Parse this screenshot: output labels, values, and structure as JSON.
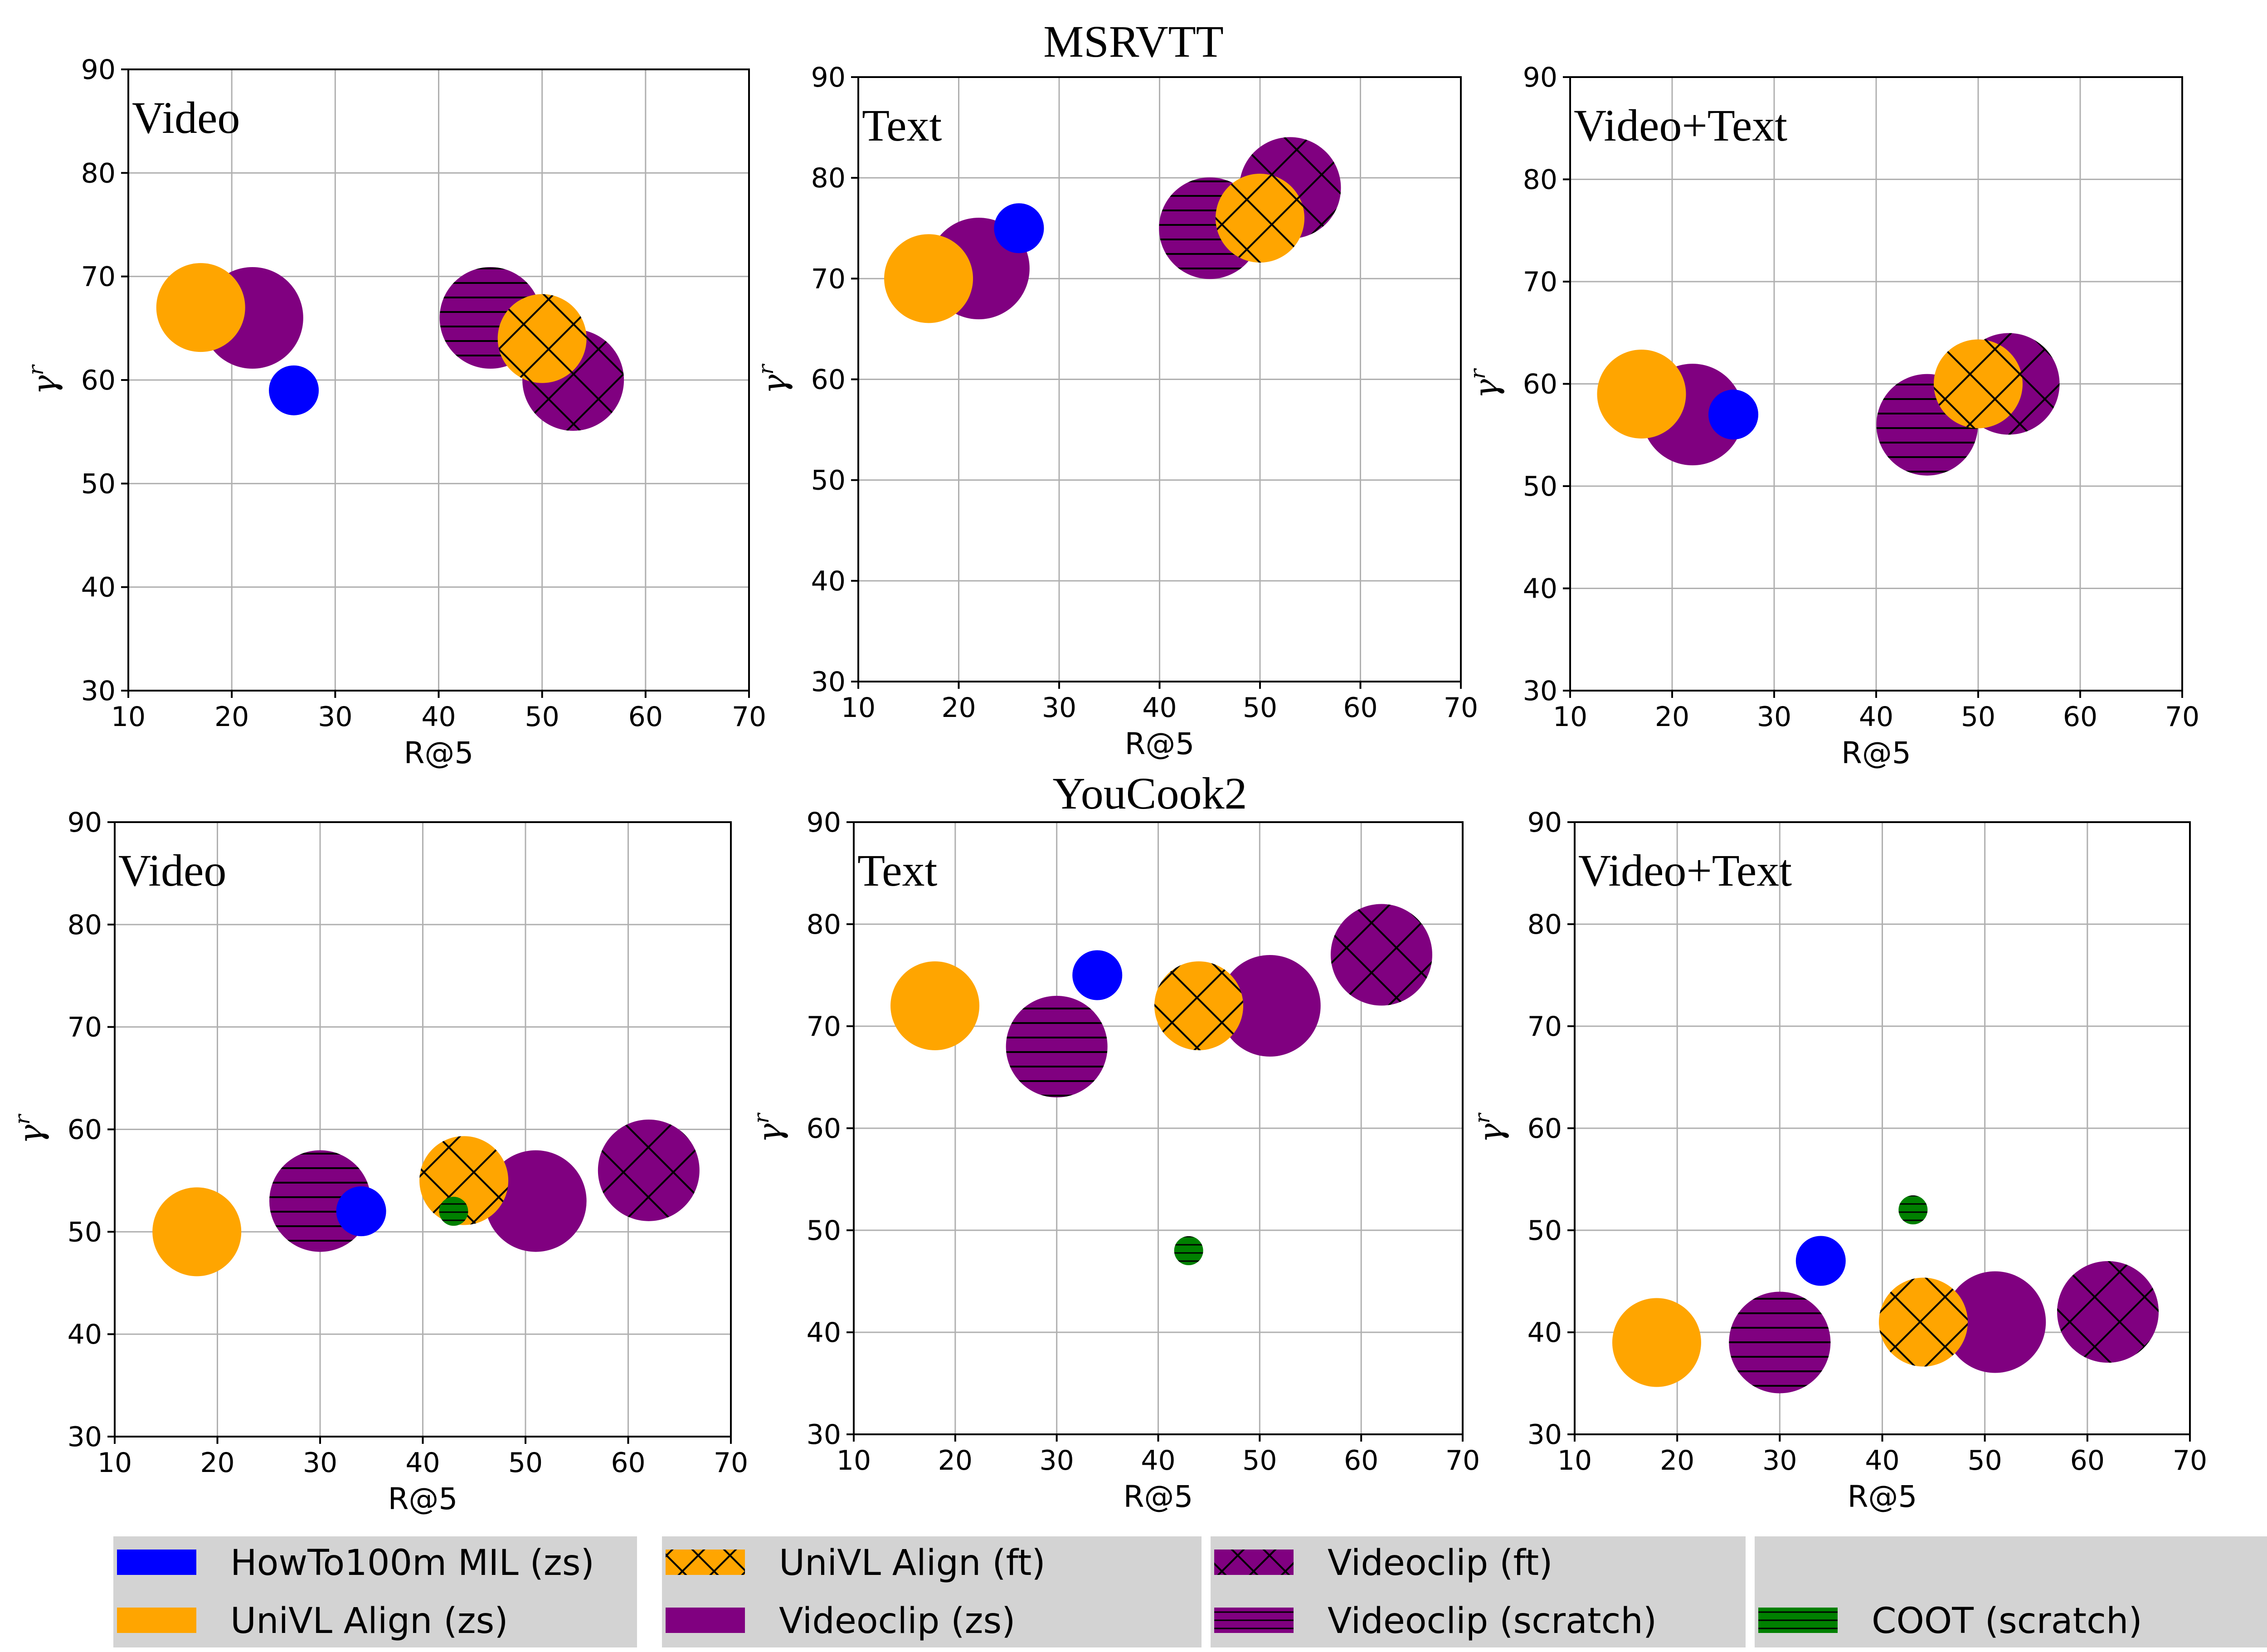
{
  "chart_data": [
    {
      "type": "scatter",
      "group_title": "MSRVTT",
      "panel_title": "Video",
      "xlabel": "R@5",
      "ylabel": "γ^r",
      "xlim": [
        10,
        70
      ],
      "ylim": [
        30,
        90
      ],
      "xticks": [
        10,
        20,
        30,
        40,
        50,
        60,
        70
      ],
      "yticks": [
        30,
        40,
        50,
        60,
        70,
        80,
        90
      ],
      "grid": true,
      "points": [
        {
          "series": "HowTo100m MIL (zs)",
          "x": 26,
          "y": 59
        },
        {
          "series": "UniVL Align (zs)",
          "x": 17,
          "y": 67
        },
        {
          "series": "Videoclip (zs)",
          "x": 22,
          "y": 66
        },
        {
          "series": "Videoclip (scratch)",
          "x": 45,
          "y": 66
        },
        {
          "series": "Videoclip (ft)",
          "x": 53,
          "y": 60
        },
        {
          "series": "UniVL Align (ft)",
          "x": 50,
          "y": 64
        }
      ]
    },
    {
      "type": "scatter",
      "group_title": "MSRVTT",
      "panel_title": "Text",
      "xlabel": "R@5",
      "ylabel": "γ^r",
      "xlim": [
        10,
        70
      ],
      "ylim": [
        30,
        90
      ],
      "xticks": [
        10,
        20,
        30,
        40,
        50,
        60,
        70
      ],
      "yticks": [
        30,
        40,
        50,
        60,
        70,
        80,
        90
      ],
      "grid": true,
      "points": [
        {
          "series": "Videoclip (zs)",
          "x": 22,
          "y": 71
        },
        {
          "series": "UniVL Align (zs)",
          "x": 17,
          "y": 70
        },
        {
          "series": "HowTo100m MIL (zs)",
          "x": 26,
          "y": 75
        },
        {
          "series": "Videoclip (scratch)",
          "x": 45,
          "y": 75
        },
        {
          "series": "Videoclip (ft)",
          "x": 53,
          "y": 79
        },
        {
          "series": "UniVL Align (ft)",
          "x": 50,
          "y": 76
        }
      ]
    },
    {
      "type": "scatter",
      "group_title": "MSRVTT",
      "panel_title": "Video+Text",
      "xlabel": "R@5",
      "ylabel": "γ^r",
      "xlim": [
        10,
        70
      ],
      "ylim": [
        30,
        90
      ],
      "xticks": [
        10,
        20,
        30,
        40,
        50,
        60,
        70
      ],
      "yticks": [
        30,
        40,
        50,
        60,
        70,
        80,
        90
      ],
      "grid": true,
      "points": [
        {
          "series": "Videoclip (zs)",
          "x": 22,
          "y": 57
        },
        {
          "series": "UniVL Align (zs)",
          "x": 17,
          "y": 59
        },
        {
          "series": "HowTo100m MIL (zs)",
          "x": 26,
          "y": 57
        },
        {
          "series": "Videoclip (scratch)",
          "x": 45,
          "y": 56
        },
        {
          "series": "Videoclip (ft)",
          "x": 53,
          "y": 60
        },
        {
          "series": "UniVL Align (ft)",
          "x": 50,
          "y": 60
        }
      ]
    },
    {
      "type": "scatter",
      "group_title": "YouCook2",
      "panel_title": "Video",
      "xlabel": "R@5",
      "ylabel": "γ^r",
      "xlim": [
        10,
        70
      ],
      "ylim": [
        30,
        90
      ],
      "xticks": [
        10,
        20,
        30,
        40,
        50,
        60,
        70
      ],
      "yticks": [
        30,
        40,
        50,
        60,
        70,
        80,
        90
      ],
      "grid": true,
      "points": [
        {
          "series": "UniVL Align (zs)",
          "x": 18,
          "y": 50
        },
        {
          "series": "Videoclip (scratch)",
          "x": 30,
          "y": 53
        },
        {
          "series": "HowTo100m MIL (zs)",
          "x": 34,
          "y": 52
        },
        {
          "series": "UniVL Align (ft)",
          "x": 44,
          "y": 55
        },
        {
          "series": "COOT (scratch)",
          "x": 43,
          "y": 52
        },
        {
          "series": "Videoclip (zs)",
          "x": 51,
          "y": 53
        },
        {
          "series": "Videoclip (ft)",
          "x": 62,
          "y": 56
        }
      ]
    },
    {
      "type": "scatter",
      "group_title": "YouCook2",
      "panel_title": "Text",
      "xlabel": "R@5",
      "ylabel": "γ^r",
      "xlim": [
        10,
        70
      ],
      "ylim": [
        30,
        90
      ],
      "xticks": [
        10,
        20,
        30,
        40,
        50,
        60,
        70
      ],
      "yticks": [
        30,
        40,
        50,
        60,
        70,
        80,
        90
      ],
      "grid": true,
      "points": [
        {
          "series": "UniVL Align (zs)",
          "x": 18,
          "y": 72
        },
        {
          "series": "HowTo100m MIL (zs)",
          "x": 34,
          "y": 75
        },
        {
          "series": "Videoclip (scratch)",
          "x": 30,
          "y": 68
        },
        {
          "series": "UniVL Align (ft)",
          "x": 44,
          "y": 72
        },
        {
          "series": "Videoclip (zs)",
          "x": 51,
          "y": 72
        },
        {
          "series": "Videoclip (ft)",
          "x": 62,
          "y": 77
        },
        {
          "series": "COOT (scratch)",
          "x": 43,
          "y": 48
        }
      ]
    },
    {
      "type": "scatter",
      "group_title": "YouCook2",
      "panel_title": "Video+Text",
      "xlabel": "R@5",
      "ylabel": "γ^r",
      "xlim": [
        10,
        70
      ],
      "ylim": [
        30,
        90
      ],
      "xticks": [
        10,
        20,
        30,
        40,
        50,
        60,
        70
      ],
      "yticks": [
        30,
        40,
        50,
        60,
        70,
        80,
        90
      ],
      "grid": true,
      "points": [
        {
          "series": "UniVL Align (zs)",
          "x": 18,
          "y": 39
        },
        {
          "series": "Videoclip (scratch)",
          "x": 30,
          "y": 39
        },
        {
          "series": "HowTo100m MIL (zs)",
          "x": 34,
          "y": 47
        },
        {
          "series": "COOT (scratch)",
          "x": 43,
          "y": 52
        },
        {
          "series": "UniVL Align (ft)",
          "x": 44,
          "y": 41
        },
        {
          "series": "Videoclip (zs)",
          "x": 51,
          "y": 41
        },
        {
          "series": "Videoclip (ft)",
          "x": 62,
          "y": 42
        }
      ]
    }
  ],
  "series_styles": {
    "HowTo100m MIL (zs)": {
      "color": "#0000ff",
      "hatch": "none",
      "size": "small"
    },
    "UniVL Align (zs)": {
      "color": "#ffa500",
      "hatch": "none",
      "size": "medium"
    },
    "UniVL Align (ft)": {
      "color": "#ffa500",
      "hatch": "cross",
      "size": "medium"
    },
    "Videoclip (zs)": {
      "color": "#800080",
      "hatch": "none",
      "size": "large"
    },
    "Videoclip (ft)": {
      "color": "#800080",
      "hatch": "cross",
      "size": "large"
    },
    "Videoclip (scratch)": {
      "color": "#800080",
      "hatch": "horizontal",
      "size": "large"
    },
    "COOT (scratch)": {
      "color": "#008000",
      "hatch": "horizontal",
      "size": "tiny"
    }
  },
  "legend": {
    "position": "bottom",
    "columns": [
      [
        "HowTo100m MIL (zs)",
        "UniVL Align (zs)"
      ],
      [
        "UniVL Align (ft)",
        "Videoclip (zs)"
      ],
      [
        "Videoclip (ft)",
        "Videoclip (scratch)"
      ],
      [
        "",
        "COOT (scratch)"
      ]
    ]
  }
}
